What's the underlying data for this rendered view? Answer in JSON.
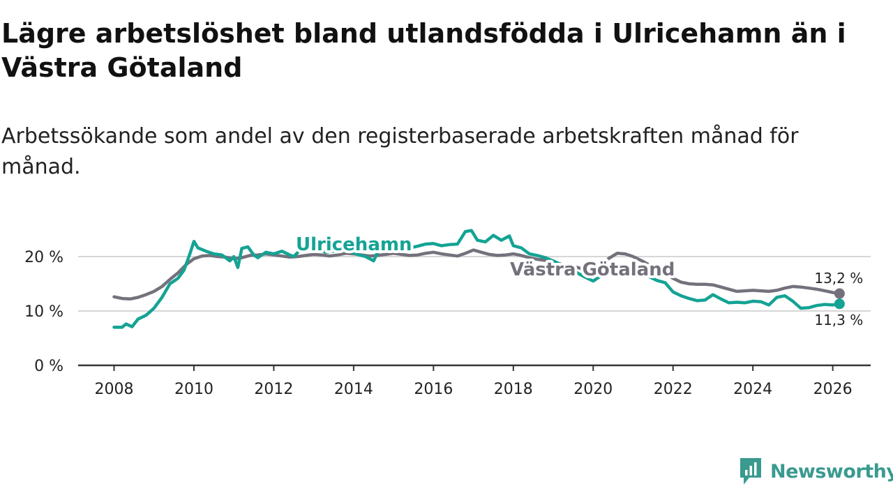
{
  "title": "Lägre arbetslöshet bland utlandsfödda i Ulricehamn än i Västra Götaland",
  "subtitle": "Arbetssökande som andel av den registerbaserade arbetskraften månad för månad.",
  "brand": {
    "name": "Newsworthy",
    "icon": "newsworthy-logo-icon",
    "color": "#3a9a8f"
  },
  "chart_data": {
    "type": "line",
    "title": "Lägre arbetslöshet bland utlandsfödda i Ulricehamn än i Västra Götaland",
    "xlabel": "",
    "ylabel": "",
    "xlim": [
      2007.1,
      2026.95
    ],
    "ylim": [
      0,
      20
    ],
    "grid": true,
    "x_ticks": [
      2008,
      2010,
      2012,
      2014,
      2016,
      2018,
      2020,
      2022,
      2024,
      2026
    ],
    "x_tick_labels": [
      "2008",
      "2010",
      "2012",
      "2014",
      "2016",
      "2018",
      "2020",
      "2022",
      "2024",
      "2026"
    ],
    "y_ticks": [
      0,
      10,
      20
    ],
    "y_tick_labels": [
      "0 %",
      "10 %",
      "20 %"
    ],
    "series": [
      {
        "name": "Västra Götaland",
        "color": "#74717c",
        "end_label": "13,2 %",
        "points": [
          [
            2008.0,
            12.6
          ],
          [
            2008.2,
            12.3
          ],
          [
            2008.4,
            12.2
          ],
          [
            2008.6,
            12.5
          ],
          [
            2008.8,
            13.0
          ],
          [
            2009.0,
            13.6
          ],
          [
            2009.2,
            14.5
          ],
          [
            2009.4,
            15.8
          ],
          [
            2009.6,
            17.0
          ],
          [
            2009.8,
            18.5
          ],
          [
            2010.0,
            19.6
          ],
          [
            2010.2,
            20.1
          ],
          [
            2010.4,
            20.2
          ],
          [
            2010.6,
            20.0
          ],
          [
            2010.8,
            19.9
          ],
          [
            2011.0,
            19.6
          ],
          [
            2011.2,
            19.8
          ],
          [
            2011.4,
            20.2
          ],
          [
            2011.6,
            20.3
          ],
          [
            2011.8,
            20.5
          ],
          [
            2012.0,
            20.3
          ],
          [
            2012.2,
            20.1
          ],
          [
            2012.4,
            19.9
          ],
          [
            2012.6,
            20.0
          ],
          [
            2012.8,
            20.2
          ],
          [
            2013.0,
            20.4
          ],
          [
            2013.2,
            20.3
          ],
          [
            2013.4,
            20.1
          ],
          [
            2013.6,
            20.3
          ],
          [
            2013.8,
            20.6
          ],
          [
            2014.0,
            20.5
          ],
          [
            2014.2,
            20.3
          ],
          [
            2014.4,
            20.1
          ],
          [
            2014.6,
            20.2
          ],
          [
            2014.8,
            20.4
          ],
          [
            2015.0,
            20.6
          ],
          [
            2015.2,
            20.4
          ],
          [
            2015.4,
            20.2
          ],
          [
            2015.6,
            20.3
          ],
          [
            2015.8,
            20.6
          ],
          [
            2016.0,
            20.8
          ],
          [
            2016.2,
            20.5
          ],
          [
            2016.4,
            20.3
          ],
          [
            2016.6,
            20.1
          ],
          [
            2016.8,
            20.6
          ],
          [
            2017.0,
            21.2
          ],
          [
            2017.2,
            20.8
          ],
          [
            2017.4,
            20.4
          ],
          [
            2017.6,
            20.2
          ],
          [
            2017.8,
            20.3
          ],
          [
            2018.0,
            20.5
          ],
          [
            2018.2,
            20.2
          ],
          [
            2018.4,
            19.8
          ],
          [
            2018.6,
            19.5
          ],
          [
            2018.8,
            19.3
          ],
          [
            2019.0,
            19.0
          ],
          [
            2019.2,
            18.6
          ],
          [
            2019.4,
            18.3
          ],
          [
            2019.6,
            18.0
          ],
          [
            2019.8,
            17.6
          ],
          [
            2020.0,
            17.5
          ],
          [
            2020.2,
            18.4
          ],
          [
            2020.4,
            19.7
          ],
          [
            2020.6,
            20.6
          ],
          [
            2020.8,
            20.5
          ],
          [
            2021.0,
            20.0
          ],
          [
            2021.2,
            19.3
          ],
          [
            2021.4,
            18.5
          ],
          [
            2021.6,
            17.7
          ],
          [
            2021.8,
            16.9
          ],
          [
            2022.0,
            16.0
          ],
          [
            2022.2,
            15.3
          ],
          [
            2022.4,
            15.0
          ],
          [
            2022.6,
            14.9
          ],
          [
            2022.8,
            14.9
          ],
          [
            2023.0,
            14.8
          ],
          [
            2023.2,
            14.4
          ],
          [
            2023.4,
            14.0
          ],
          [
            2023.6,
            13.6
          ],
          [
            2023.8,
            13.7
          ],
          [
            2024.0,
            13.8
          ],
          [
            2024.2,
            13.7
          ],
          [
            2024.4,
            13.6
          ],
          [
            2024.6,
            13.8
          ],
          [
            2024.8,
            14.2
          ],
          [
            2025.0,
            14.5
          ],
          [
            2025.2,
            14.4
          ],
          [
            2025.4,
            14.2
          ],
          [
            2025.6,
            14.0
          ],
          [
            2025.8,
            13.7
          ],
          [
            2026.0,
            13.4
          ],
          [
            2026.17,
            13.2
          ]
        ]
      },
      {
        "name": "Ulricehamn",
        "color": "#14a394",
        "end_label": "11,3 %",
        "points": [
          [
            2008.0,
            7.0
          ],
          [
            2008.2,
            7.0
          ],
          [
            2008.3,
            7.6
          ],
          [
            2008.45,
            7.1
          ],
          [
            2008.6,
            8.5
          ],
          [
            2008.8,
            9.2
          ],
          [
            2009.0,
            10.5
          ],
          [
            2009.2,
            12.5
          ],
          [
            2009.4,
            15.0
          ],
          [
            2009.6,
            16.0
          ],
          [
            2009.75,
            17.5
          ],
          [
            2009.9,
            20.5
          ],
          [
            2010.0,
            22.8
          ],
          [
            2010.1,
            21.6
          ],
          [
            2010.3,
            21.0
          ],
          [
            2010.5,
            20.5
          ],
          [
            2010.7,
            20.3
          ],
          [
            2010.9,
            19.2
          ],
          [
            2011.0,
            20.0
          ],
          [
            2011.1,
            18.0
          ],
          [
            2011.2,
            21.5
          ],
          [
            2011.35,
            21.8
          ],
          [
            2011.5,
            20.3
          ],
          [
            2011.6,
            19.8
          ],
          [
            2011.8,
            20.8
          ],
          [
            2012.0,
            20.5
          ],
          [
            2012.2,
            21.0
          ],
          [
            2012.4,
            20.3
          ],
          [
            2012.5,
            20.0
          ],
          [
            2012.7,
            21.5
          ],
          [
            2012.9,
            21.8
          ],
          [
            2013.1,
            21.2
          ],
          [
            2013.3,
            20.8
          ],
          [
            2013.5,
            21.0
          ],
          [
            2013.7,
            21.2
          ],
          [
            2013.9,
            21.0
          ],
          [
            2014.1,
            20.4
          ],
          [
            2014.3,
            20.0
          ],
          [
            2014.5,
            19.2
          ],
          [
            2014.6,
            20.8
          ],
          [
            2014.8,
            21.4
          ],
          [
            2015.0,
            21.0
          ],
          [
            2015.2,
            21.3
          ],
          [
            2015.4,
            21.6
          ],
          [
            2015.6,
            21.9
          ],
          [
            2015.8,
            22.3
          ],
          [
            2016.0,
            22.4
          ],
          [
            2016.2,
            22.0
          ],
          [
            2016.4,
            22.2
          ],
          [
            2016.6,
            22.3
          ],
          [
            2016.8,
            24.6
          ],
          [
            2016.95,
            24.8
          ],
          [
            2017.1,
            23.0
          ],
          [
            2017.3,
            22.7
          ],
          [
            2017.5,
            23.9
          ],
          [
            2017.7,
            23.0
          ],
          [
            2017.9,
            23.8
          ],
          [
            2018.0,
            22.0
          ],
          [
            2018.2,
            21.6
          ],
          [
            2018.4,
            20.5
          ],
          [
            2018.6,
            20.2
          ],
          [
            2018.8,
            19.8
          ],
          [
            2019.0,
            19.2
          ],
          [
            2019.2,
            18.5
          ],
          [
            2019.4,
            17.8
          ],
          [
            2019.6,
            17.0
          ],
          [
            2019.8,
            16.2
          ],
          [
            2020.0,
            15.5
          ],
          [
            2020.2,
            16.5
          ],
          [
            2020.4,
            17.8
          ],
          [
            2020.6,
            18.0
          ],
          [
            2020.8,
            17.8
          ],
          [
            2021.0,
            17.3
          ],
          [
            2021.2,
            16.8
          ],
          [
            2021.4,
            16.3
          ],
          [
            2021.6,
            15.6
          ],
          [
            2021.8,
            15.2
          ],
          [
            2022.0,
            13.5
          ],
          [
            2022.2,
            12.8
          ],
          [
            2022.4,
            12.3
          ],
          [
            2022.6,
            11.9
          ],
          [
            2022.8,
            12.0
          ],
          [
            2023.0,
            13.0
          ],
          [
            2023.2,
            12.2
          ],
          [
            2023.4,
            11.5
          ],
          [
            2023.6,
            11.6
          ],
          [
            2023.8,
            11.5
          ],
          [
            2024.0,
            11.8
          ],
          [
            2024.2,
            11.7
          ],
          [
            2024.4,
            11.1
          ],
          [
            2024.6,
            12.5
          ],
          [
            2024.8,
            12.8
          ],
          [
            2025.0,
            11.8
          ],
          [
            2025.2,
            10.5
          ],
          [
            2025.4,
            10.6
          ],
          [
            2025.6,
            11.0
          ],
          [
            2025.8,
            11.2
          ],
          [
            2026.0,
            11.1
          ],
          [
            2026.17,
            11.3
          ]
        ]
      }
    ]
  }
}
